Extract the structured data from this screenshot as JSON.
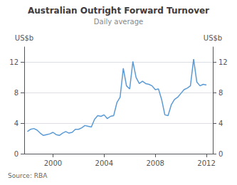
{
  "chart_data": {
    "type": "line",
    "title": "Australian Outright Forward Turnover",
    "subtitle": "Daily average",
    "ylabel": "US$b",
    "y2label": "US$b",
    "source": "Source: RBA",
    "x": [
      1998.0,
      1998.25,
      1998.5,
      1998.75,
      1999.0,
      1999.25,
      1999.5,
      1999.75,
      2000.0,
      2000.25,
      2000.5,
      2000.75,
      2001.0,
      2001.25,
      2001.5,
      2001.75,
      2002.0,
      2002.25,
      2002.5,
      2002.75,
      2003.0,
      2003.25,
      2003.5,
      2003.75,
      2004.0,
      2004.25,
      2004.5,
      2004.75,
      2005.0,
      2005.25,
      2005.5,
      2005.75,
      2006.0,
      2006.25,
      2006.5,
      2006.75,
      2007.0,
      2007.25,
      2007.5,
      2007.75,
      2008.0,
      2008.25,
      2008.5,
      2008.75,
      2009.0,
      2009.25,
      2009.5,
      2009.75,
      2010.0,
      2010.25,
      2010.5,
      2010.75,
      2011.0,
      2011.25,
      2011.5,
      2011.75,
      2012.0
    ],
    "values": [
      2.9,
      3.2,
      3.3,
      3.1,
      2.7,
      2.4,
      2.5,
      2.6,
      2.8,
      2.5,
      2.4,
      2.7,
      2.9,
      2.7,
      2.8,
      3.2,
      3.2,
      3.4,
      3.7,
      3.6,
      3.5,
      4.5,
      5.0,
      4.9,
      5.1,
      4.6,
      4.9,
      5.0,
      6.7,
      7.4,
      11.2,
      8.9,
      8.5,
      12.1,
      10.0,
      9.2,
      9.5,
      9.2,
      9.1,
      8.9,
      8.4,
      8.5,
      7.1,
      5.1,
      5.0,
      6.4,
      7.1,
      7.4,
      7.9,
      8.4,
      8.6,
      8.9,
      12.4,
      9.4,
      8.9,
      9.1,
      9.0
    ],
    "color": "#5b9bd5",
    "xlim": [
      1997.75,
      2012.5
    ],
    "xticks": [
      2000,
      2004,
      2008,
      2012
    ],
    "ylim": [
      0,
      14
    ],
    "yticks": [
      0,
      4,
      8,
      12
    ],
    "y2lim": [
      0,
      14
    ],
    "y2ticks": [
      0,
      4,
      8,
      12
    ],
    "grid": true
  }
}
